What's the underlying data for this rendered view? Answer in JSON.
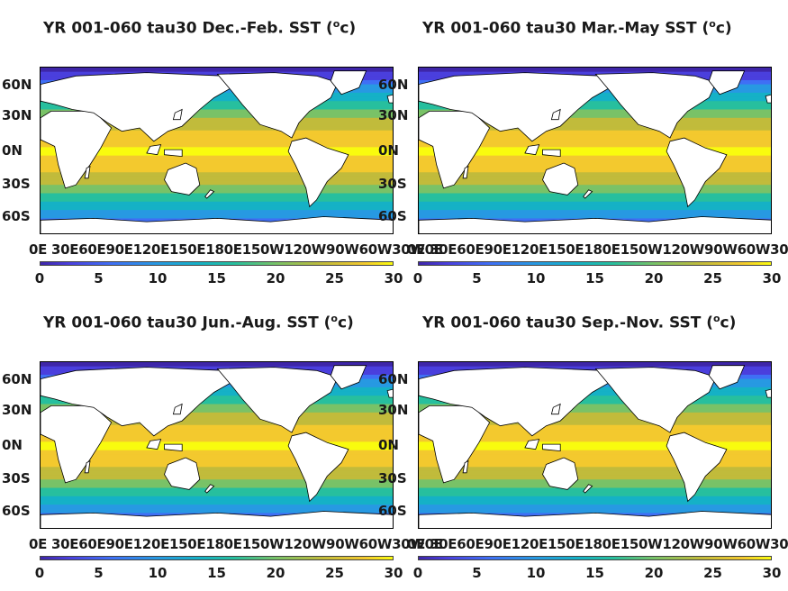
{
  "panels": [
    {
      "title": "YR 001-060 tau30 Dec.-Feb. SST (",
      "unit_sup": "o",
      "unit_tail": "c)"
    },
    {
      "title": "YR 001-060 tau30 Mar.-May SST (",
      "unit_sup": "o",
      "unit_tail": "c)"
    },
    {
      "title": "YR 001-060 tau30 Jun.-Aug. SST (",
      "unit_sup": "o",
      "unit_tail": "c)"
    },
    {
      "title": "YR 001-060 tau30 Sep.-Nov. SST (",
      "unit_sup": "o",
      "unit_tail": "c)"
    }
  ],
  "lat_labels": [
    "60N",
    "30N",
    "0N",
    "30S",
    "60S"
  ],
  "lon_labels": "0E 30E60E90E120E150E180E150W120W90W60W30W0E",
  "colorbar": {
    "ticks": [
      "0",
      "5",
      "10",
      "15",
      "20",
      "25",
      "30"
    ],
    "min": 0,
    "max": 30,
    "colors": [
      "#3e26a8",
      "#4a3fdd",
      "#3f6ff5",
      "#2799e2",
      "#15b1c6",
      "#27bf9e",
      "#79c267",
      "#c1bb3b",
      "#f3c92e",
      "#f9fb0e"
    ]
  }
}
